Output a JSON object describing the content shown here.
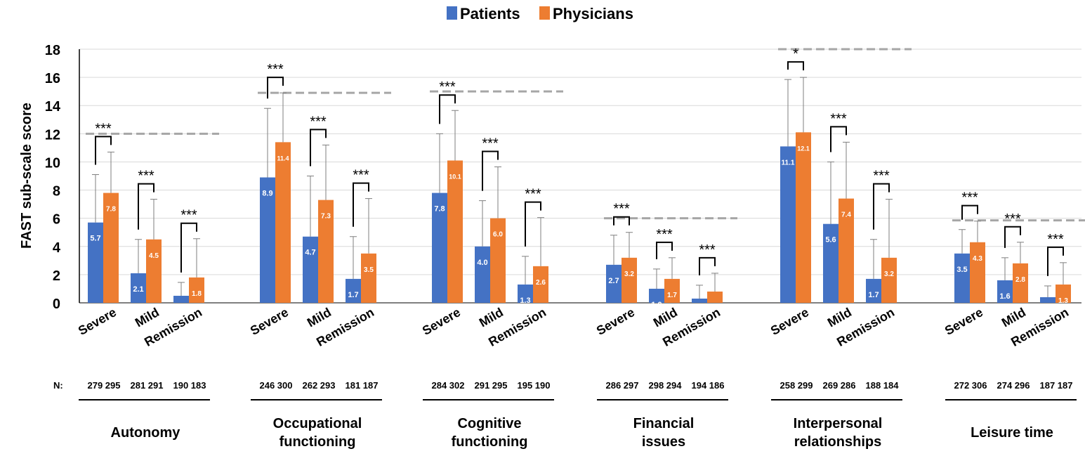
{
  "chart_data": {
    "type": "bar",
    "ylabel": "FAST sub-scale score",
    "ylim": [
      0,
      18
    ],
    "yticks": [
      "0",
      "2",
      "4",
      "6",
      "8",
      "10",
      "12",
      "14",
      "16",
      "18"
    ],
    "grid": true,
    "legend_position": "top-center",
    "series": [
      {
        "name": "Patients",
        "color": "#4472C4"
      },
      {
        "name": "Physicians",
        "color": "#ED7D31"
      }
    ],
    "n_label": "N:",
    "groups": [
      {
        "name_lines": [
          "Autonomy"
        ],
        "ref_line": 12,
        "bars": [
          {
            "category": "Severe",
            "patients": 5.7,
            "physicians": 7.8,
            "patients_label": "5.7",
            "physicians_label": "7.8",
            "patients_err": 9.1,
            "physicians_err": 10.7,
            "sig": "***",
            "n": "279 295"
          },
          {
            "category": "Mild",
            "patients": 2.1,
            "physicians": 4.5,
            "patients_label": "2.1",
            "physicians_label": "4.5",
            "patients_err": 4.5,
            "physicians_err": 7.35,
            "sig": "***",
            "n": "281 291"
          },
          {
            "category": "Remission",
            "patients": 0.5,
            "physicians": 1.8,
            "patients_label": "",
            "physicians_label": "1.8",
            "patients_err": 1.45,
            "physicians_err": 4.55,
            "sig": "***",
            "n": "190 183"
          }
        ]
      },
      {
        "name_lines": [
          "Occupational",
          "functioning"
        ],
        "ref_line": 14.9,
        "bars": [
          {
            "category": "Severe",
            "patients": 8.9,
            "physicians": 11.4,
            "patients_label": "8.9",
            "physicians_label": "11.4",
            "patients_err": 13.8,
            "physicians_err": 14.9,
            "sig": "***",
            "n": "246 300"
          },
          {
            "category": "Mild",
            "patients": 4.7,
            "physicians": 7.3,
            "patients_label": "4.7",
            "physicians_label": "7.3",
            "patients_err": 9.0,
            "physicians_err": 11.2,
            "sig": "***",
            "n": "262 293"
          },
          {
            "category": "Remission",
            "patients": 1.7,
            "physicians": 3.5,
            "patients_label": "1.7",
            "physicians_label": "3.5",
            "patients_err": 4.7,
            "physicians_err": 7.4,
            "sig": "***",
            "n": "181 187"
          }
        ]
      },
      {
        "name_lines": [
          "Cognitive",
          "functioning"
        ],
        "ref_line": 15,
        "bars": [
          {
            "category": "Severe",
            "patients": 7.8,
            "physicians": 10.1,
            "patients_label": "7.8",
            "physicians_label": "10.1",
            "patients_err": 12.0,
            "physicians_err": 13.65,
            "sig": "***",
            "n": "284 302"
          },
          {
            "category": "Mild",
            "patients": 4.0,
            "physicians": 6.0,
            "patients_label": "4.0",
            "physicians_label": "6.0",
            "patients_err": 7.25,
            "physicians_err": 9.65,
            "sig": "***",
            "n": "291 295"
          },
          {
            "category": "Remission",
            "patients": 1.3,
            "physicians": 2.6,
            "patients_label": "1.3",
            "physicians_label": "2.6",
            "patients_err": 3.3,
            "physicians_err": 6.05,
            "sig": "***",
            "n": "195 190"
          }
        ]
      },
      {
        "name_lines": [
          "Financial",
          "issues"
        ],
        "ref_line": 6,
        "bars": [
          {
            "category": "Severe",
            "patients": 2.7,
            "physicians": 3.2,
            "patients_label": "2.7",
            "physicians_label": "3.2",
            "patients_err": 4.8,
            "physicians_err": 5.0,
            "sig": "***",
            "n": "286 297"
          },
          {
            "category": "Mild",
            "patients": 1.0,
            "physicians": 1.7,
            "patients_label": "1.0",
            "physicians_label": "1.7",
            "patients_err": 2.4,
            "physicians_err": 3.2,
            "sig": "***",
            "n": "298 294"
          },
          {
            "category": "Remission",
            "patients": 0.3,
            "physicians": 0.8,
            "patients_label": "",
            "physicians_label": "0.8",
            "patients_err": 1.25,
            "physicians_err": 2.1,
            "sig": "***",
            "n": "194 186"
          }
        ]
      },
      {
        "name_lines": [
          "Interpersonal",
          "relationships"
        ],
        "ref_line": 18,
        "bars": [
          {
            "category": "Severe",
            "patients": 11.1,
            "physicians": 12.1,
            "patients_label": "11.1",
            "physicians_label": "12.1",
            "patients_err": 15.85,
            "physicians_err": 16.0,
            "sig": "*",
            "n": "258 299"
          },
          {
            "category": "Mild",
            "patients": 5.6,
            "physicians": 7.4,
            "patients_label": "5.6",
            "physicians_label": "7.4",
            "patients_err": 10.0,
            "physicians_err": 11.4,
            "sig": "***",
            "n": "269 286"
          },
          {
            "category": "Remission",
            "patients": 1.7,
            "physicians": 3.2,
            "patients_label": "1.7",
            "physicians_label": "3.2",
            "patients_err": 4.5,
            "physicians_err": 7.35,
            "sig": "***",
            "n": "188 184"
          }
        ]
      },
      {
        "name_lines": [
          "Leisure time"
        ],
        "ref_line": 5.85,
        "bars": [
          {
            "category": "Severe",
            "patients": 3.5,
            "physicians": 4.3,
            "patients_label": "3.5",
            "physicians_label": "4.3",
            "patients_err": 5.2,
            "physicians_err": 5.8,
            "sig": "***",
            "n": "272 306"
          },
          {
            "category": "Mild",
            "patients": 1.6,
            "physicians": 2.8,
            "patients_label": "1.6",
            "physicians_label": "2.8",
            "patients_err": 3.2,
            "physicians_err": 4.3,
            "sig": "***",
            "n": "274 296"
          },
          {
            "category": "Remission",
            "patients": 0.4,
            "physicians": 1.3,
            "patients_label": "",
            "physicians_label": "1.3",
            "patients_err": 1.2,
            "physicians_err": 2.85,
            "sig": "***",
            "n": "187 187"
          }
        ]
      }
    ]
  }
}
